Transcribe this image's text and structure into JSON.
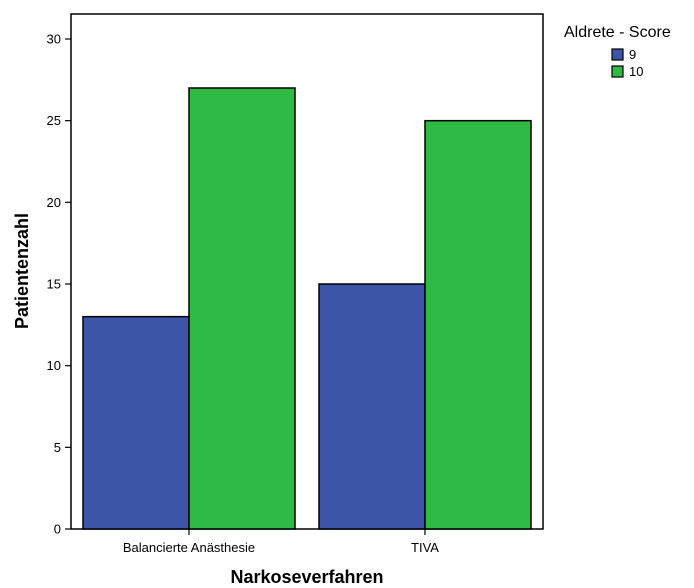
{
  "chart_data": {
    "type": "bar",
    "title": "",
    "xlabel": "Narkoseverfahren",
    "ylabel": "Patientenzahl",
    "categories": [
      "Balancierte Anästhesie",
      "TIVA"
    ],
    "series": [
      {
        "name": "9",
        "values": [
          13,
          15
        ],
        "color": "#3d55a8"
      },
      {
        "name": "10",
        "values": [
          27,
          25
        ],
        "color": "#2fba45"
      }
    ],
    "ylim": [
      0,
      30
    ],
    "yticks": [
      0,
      5,
      10,
      15,
      20,
      25,
      30
    ],
    "legend": {
      "title": "Aldrete - Score",
      "position": "top-right"
    },
    "grid": false
  }
}
